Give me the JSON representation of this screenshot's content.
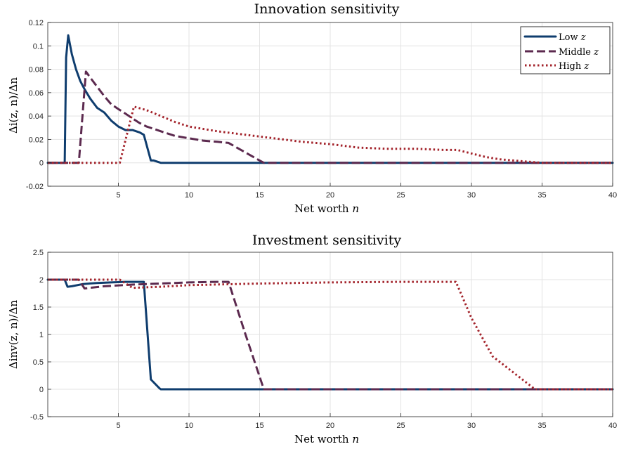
{
  "chart_data": [
    {
      "type": "line",
      "title": "Innovation sensitivity",
      "xlabel": "Net worth",
      "xlabel_var": "n",
      "ylabel": "Δi(z, n)/Δn",
      "xlim": [
        0,
        40
      ],
      "ylim": [
        -0.02,
        0.12
      ],
      "xticks": [
        5,
        10,
        15,
        20,
        25,
        30,
        35,
        40
      ],
      "yticks": [
        -0.02,
        0,
        0.02,
        0.04,
        0.06,
        0.08,
        0.1,
        0.12
      ],
      "ytick_labels": [
        "-0.02",
        "0",
        "0.02",
        "0.04",
        "0.06",
        "0.08",
        "0.1",
        "0.12"
      ],
      "grid": true,
      "legend_position": "top-right",
      "series": [
        {
          "name": "Low",
          "name_var": "z",
          "color": "#0f3d6e",
          "style": "solid",
          "x": [
            0,
            1.2,
            1.3,
            1.45,
            1.7,
            2.0,
            2.3,
            2.6,
            3.0,
            3.5,
            4.0,
            4.5,
            5.0,
            5.5,
            6.0,
            6.5,
            6.8,
            7.3,
            7.5,
            8.0,
            9.0,
            40
          ],
          "y": [
            0,
            0,
            0.09,
            0.109,
            0.093,
            0.08,
            0.07,
            0.063,
            0.055,
            0.047,
            0.043,
            0.036,
            0.031,
            0.028,
            0.028,
            0.026,
            0.024,
            0.002,
            0.002,
            0,
            0,
            0
          ]
        },
        {
          "name": "Middle",
          "name_var": "z",
          "color": "#5c2a4f",
          "style": "dashed",
          "x": [
            0,
            2.2,
            2.7,
            3.0,
            3.5,
            4.0,
            4.5,
            5.0,
            5.5,
            6.0,
            6.5,
            7.0,
            7.5,
            8.0,
            8.5,
            9.0,
            9.5,
            10.0,
            11.0,
            12.0,
            12.8,
            15.0,
            15.3,
            40
          ],
          "y": [
            0,
            0,
            0.078,
            0.073,
            0.065,
            0.057,
            0.05,
            0.046,
            0.042,
            0.038,
            0.034,
            0.031,
            0.029,
            0.027,
            0.025,
            0.023,
            0.022,
            0.021,
            0.019,
            0.018,
            0.017,
            0.002,
            0,
            0
          ]
        },
        {
          "name": "High",
          "name_var": "z",
          "color": "#a3232b",
          "style": "dotted",
          "x": [
            0,
            5.1,
            6.1,
            7.0,
            8.0,
            9.0,
            10.0,
            12.0,
            14.0,
            16.0,
            18.0,
            20.0,
            22.0,
            24.0,
            26.0,
            28.0,
            29.0,
            30.0,
            31.0,
            32.0,
            33.0,
            34.0,
            35.0,
            40
          ],
          "y": [
            0,
            0,
            0.048,
            0.045,
            0.04,
            0.035,
            0.031,
            0.027,
            0.024,
            0.021,
            0.018,
            0.016,
            0.013,
            0.012,
            0.012,
            0.011,
            0.011,
            0.008,
            0.005,
            0.003,
            0.002,
            0.001,
            0,
            0
          ]
        }
      ]
    },
    {
      "type": "line",
      "title": "Investment sensitivity",
      "xlabel": "Net worth",
      "xlabel_var": "n",
      "ylabel": "Δinv(z, n)/Δn",
      "xlim": [
        0,
        40
      ],
      "ylim": [
        -0.5,
        2.5
      ],
      "xticks": [
        5,
        10,
        15,
        20,
        25,
        30,
        35,
        40
      ],
      "yticks": [
        -0.5,
        0,
        0.5,
        1,
        1.5,
        2,
        2.5
      ],
      "ytick_labels": [
        "-0.5",
        "0",
        "0.5",
        "1",
        "1.5",
        "2",
        "2.5"
      ],
      "grid": true,
      "series": [
        {
          "name": "Low",
          "color": "#0f3d6e",
          "style": "solid",
          "x": [
            0,
            1.2,
            1.4,
            1.7,
            2.5,
            3.5,
            4.5,
            5.5,
            6.5,
            6.8,
            7.3,
            7.9,
            8.0,
            40
          ],
          "y": [
            2,
            2,
            1.87,
            1.88,
            1.92,
            1.94,
            1.95,
            1.96,
            1.96,
            1.96,
            0.18,
            0.02,
            0,
            0
          ]
        },
        {
          "name": "Middle",
          "color": "#5c2a4f",
          "style": "dashed",
          "x": [
            0,
            2.2,
            2.6,
            4.0,
            6.0,
            8.0,
            10.0,
            12.0,
            12.8,
            14.0,
            15.3,
            40
          ],
          "y": [
            2,
            2,
            1.84,
            1.88,
            1.91,
            1.93,
            1.95,
            1.96,
            1.96,
            1.0,
            0,
            0
          ]
        },
        {
          "name": "High",
          "color": "#a3232b",
          "style": "dotted",
          "x": [
            0,
            5.1,
            6.0,
            8.0,
            10.0,
            15.0,
            20.0,
            25.0,
            28.9,
            30.0,
            31.5,
            33.0,
            34.5,
            40
          ],
          "y": [
            2,
            2,
            1.85,
            1.87,
            1.9,
            1.93,
            1.95,
            1.96,
            1.96,
            1.3,
            0.6,
            0.3,
            0,
            0
          ]
        }
      ]
    }
  ]
}
